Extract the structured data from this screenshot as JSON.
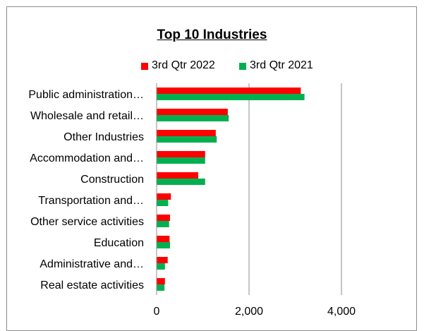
{
  "chart_data": {
    "type": "bar",
    "orientation": "horizontal",
    "title": "Top 10 Industries",
    "categories": [
      "Public administration…",
      "Wholesale and retail…",
      "Other Industries",
      "Accommodation and…",
      "Construction",
      "Transportation and…",
      "Other service activities",
      "Education",
      "Administrative and…",
      "Real estate activities"
    ],
    "series": [
      {
        "name": "3rd Qtr 2022",
        "color": "#ff0000",
        "values": [
          3120,
          1540,
          1280,
          1050,
          900,
          310,
          290,
          280,
          240,
          180
        ]
      },
      {
        "name": "3rd Qtr 2021",
        "color": "#00b050",
        "values": [
          3200,
          1560,
          1300,
          1050,
          1050,
          250,
          270,
          290,
          180,
          170
        ]
      }
    ],
    "xlim": [
      0,
      4000
    ],
    "xticks": [
      0,
      2000,
      4000
    ],
    "xtick_labels": [
      "0",
      "2,000",
      "4,000"
    ],
    "xlabel": "",
    "ylabel": "",
    "grid": "vertical",
    "legend": "top"
  }
}
